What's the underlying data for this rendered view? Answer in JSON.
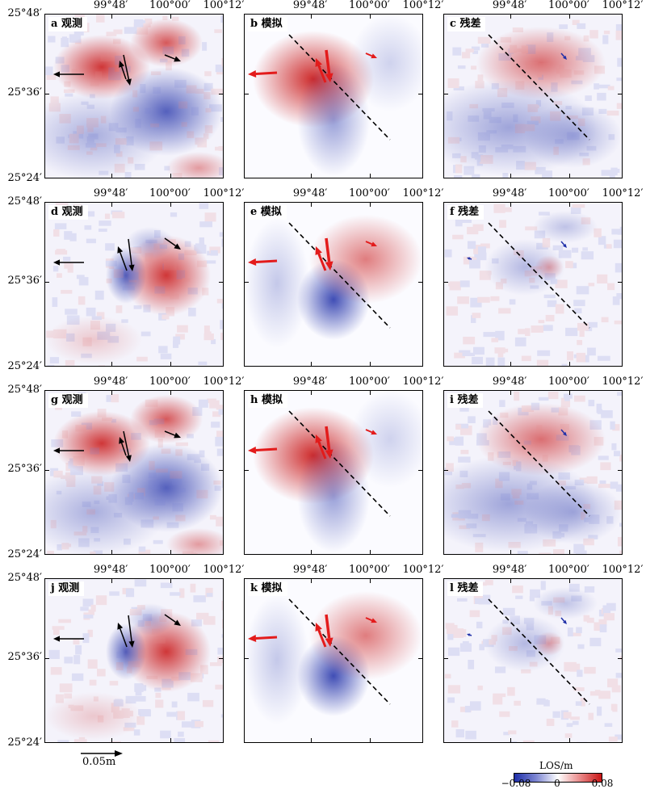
{
  "lon_labels": [
    "99°48′",
    "100°00′",
    "100°12′"
  ],
  "lat_labels": [
    "25°48′",
    "25°36′",
    "25°24′"
  ],
  "panels": [
    {
      "label": "a 观测"
    },
    {
      "label": "b 模拟"
    },
    {
      "label": "c 残差"
    },
    {
      "label": "d 观测"
    },
    {
      "label": "e 模拟"
    },
    {
      "label": "f 残差"
    },
    {
      "label": "g 观测"
    },
    {
      "label": "h 模拟"
    },
    {
      "label": "i 残差"
    },
    {
      "label": "j 观测"
    },
    {
      "label": "k 模拟"
    },
    {
      "label": "l 残差"
    }
  ],
  "scale_bar": {
    "label": "0.05m"
  },
  "colorbar": {
    "title": "LOS/m",
    "min_label": "−0.08",
    "mid_label": "0",
    "max_label": "0.08",
    "colors": [
      "#1f2fa8",
      "#ffffff",
      "#c91515"
    ]
  }
}
